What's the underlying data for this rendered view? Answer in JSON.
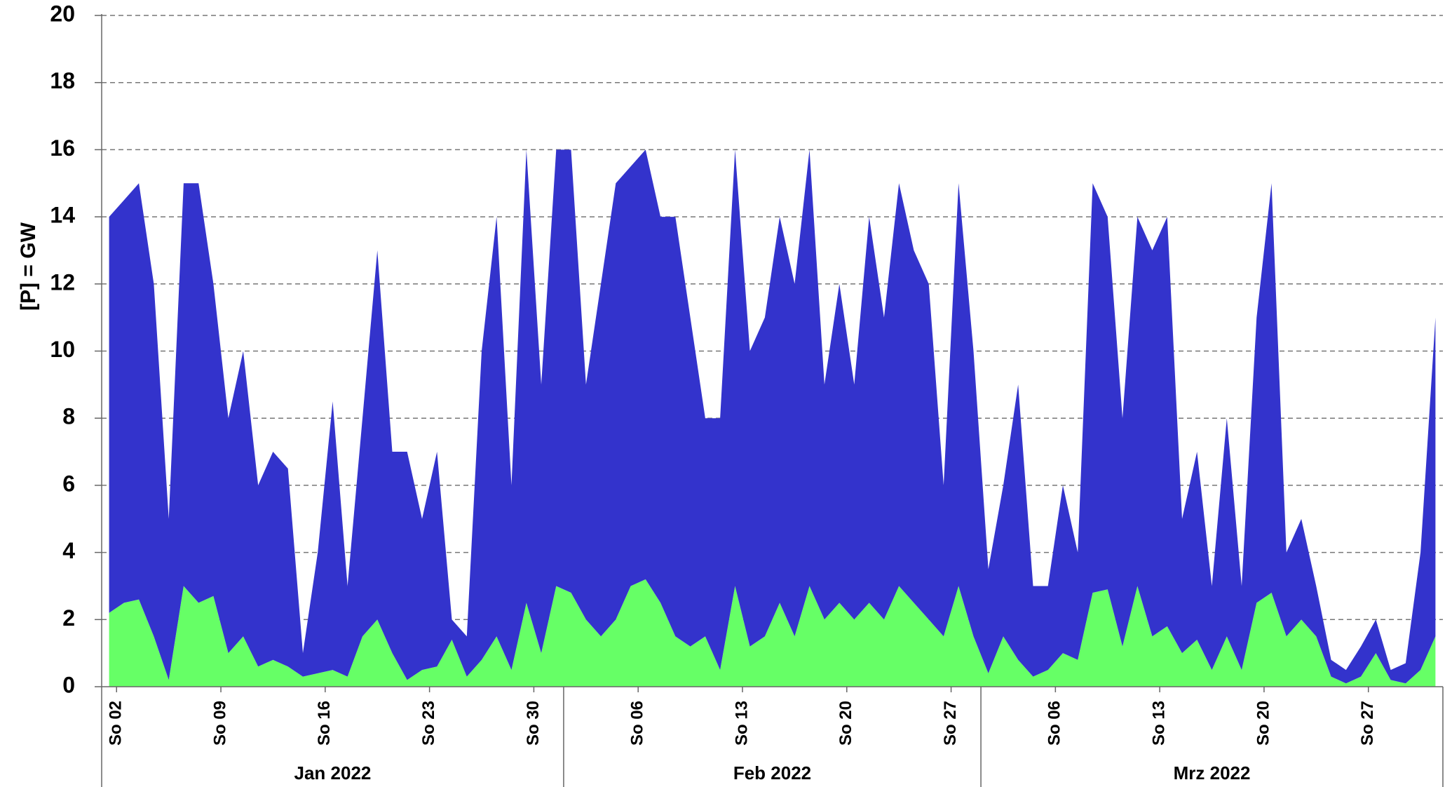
{
  "chart_data": {
    "type": "stacked_area",
    "y_label": "[P] = GW",
    "ylim": [
      0,
      20
    ],
    "yticks": [
      0,
      2,
      4,
      6,
      8,
      10,
      12,
      14,
      16,
      18,
      20
    ],
    "grid": true,
    "xlim": [
      "2022-01-01",
      "2022-03-31"
    ],
    "x": [
      "2022-01-01",
      "2022-01-02",
      "2022-01-03",
      "2022-01-04",
      "2022-01-05",
      "2022-01-06",
      "2022-01-07",
      "2022-01-08",
      "2022-01-09",
      "2022-01-10",
      "2022-01-11",
      "2022-01-12",
      "2022-01-13",
      "2022-01-14",
      "2022-01-15",
      "2022-01-16",
      "2022-01-17",
      "2022-01-18",
      "2022-01-19",
      "2022-01-20",
      "2022-01-21",
      "2022-01-22",
      "2022-01-23",
      "2022-01-24",
      "2022-01-25",
      "2022-01-26",
      "2022-01-27",
      "2022-01-28",
      "2022-01-29",
      "2022-01-30",
      "2022-01-31",
      "2022-02-01",
      "2022-02-02",
      "2022-02-03",
      "2022-02-04",
      "2022-02-05",
      "2022-02-06",
      "2022-02-07",
      "2022-02-08",
      "2022-02-09",
      "2022-02-10",
      "2022-02-11",
      "2022-02-12",
      "2022-02-13",
      "2022-02-14",
      "2022-02-15",
      "2022-02-16",
      "2022-02-17",
      "2022-02-18",
      "2022-02-19",
      "2022-02-20",
      "2022-02-21",
      "2022-02-22",
      "2022-02-23",
      "2022-02-24",
      "2022-02-25",
      "2022-02-26",
      "2022-02-27",
      "2022-02-28",
      "2022-03-01",
      "2022-03-02",
      "2022-03-03",
      "2022-03-04",
      "2022-03-05",
      "2022-03-06",
      "2022-03-07",
      "2022-03-08",
      "2022-03-09",
      "2022-03-10",
      "2022-03-11",
      "2022-03-12",
      "2022-03-13",
      "2022-03-14",
      "2022-03-15",
      "2022-03-16",
      "2022-03-17",
      "2022-03-18",
      "2022-03-19",
      "2022-03-20",
      "2022-03-21",
      "2022-03-22",
      "2022-03-23",
      "2022-03-24",
      "2022-03-25",
      "2022-03-26",
      "2022-03-27",
      "2022-03-28",
      "2022-03-29",
      "2022-03-30",
      "2022-03-31"
    ],
    "series": [
      {
        "color": "#66ff66",
        "values": [
          2.2,
          2.5,
          2.6,
          1.5,
          0.2,
          3.0,
          2.5,
          2.7,
          1.0,
          1.5,
          0.6,
          0.8,
          0.6,
          0.3,
          0.4,
          0.5,
          0.3,
          1.5,
          2.0,
          1.0,
          0.2,
          0.5,
          0.6,
          1.4,
          0.3,
          0.8,
          1.5,
          0.5,
          2.5,
          1.0,
          3.0,
          2.8,
          2.0,
          1.5,
          2.0,
          3.0,
          3.2,
          2.5,
          1.5,
          1.2,
          1.5,
          0.5,
          3.0,
          1.2,
          1.5,
          2.5,
          1.5,
          3.0,
          2.0,
          2.5,
          2.0,
          2.5,
          2.0,
          3.0,
          2.5,
          2.0,
          1.5,
          3.0,
          1.5,
          0.4,
          1.5,
          0.8,
          0.3,
          0.5,
          1.0,
          0.8,
          2.8,
          2.9,
          1.2,
          3.0,
          1.5,
          1.8,
          1.0,
          1.4,
          0.5,
          1.5,
          0.5,
          2.5,
          2.8,
          1.5,
          2.0,
          1.5,
          0.3,
          0.1,
          0.3,
          1.0,
          0.2,
          0.1,
          0.5,
          1.5
        ]
      },
      {
        "color": "#3333cc",
        "values": [
          11.8,
          12,
          12.4,
          10.5,
          4.8,
          12,
          12.5,
          9.3,
          7,
          8.5,
          5.4,
          6.2,
          5.9,
          0.7,
          3.6,
          8,
          2.7,
          6.5,
          11,
          6,
          6.8,
          4.5,
          6.4,
          0.6,
          1.2,
          9.2,
          12.5,
          5.5,
          13.5,
          8,
          13,
          13.2,
          7,
          10.5,
          13,
          12.5,
          12.8,
          11.5,
          12.5,
          9.8,
          6.5,
          7.5,
          13,
          8.8,
          9.5,
          11.5,
          10.5,
          13,
          7,
          9.5,
          7,
          11.5,
          9,
          12,
          10.5,
          10,
          4.5,
          12,
          8.5,
          3.1,
          4.5,
          8.2,
          2.7,
          2.5,
          5,
          3.2,
          12.2,
          11.1,
          6.8,
          11,
          11.5,
          12.2,
          4,
          5.6,
          2.5,
          6.5,
          2.5,
          8.5,
          12.2,
          2.5,
          3,
          1.5,
          0.5,
          0.4,
          0.9,
          1,
          0.3,
          0.6,
          3.5,
          9.5
        ]
      }
    ],
    "xticks": [
      {
        "value": "2022-01-02",
        "label": "So 02"
      },
      {
        "value": "2022-01-09",
        "label": "So 09"
      },
      {
        "value": "2022-01-16",
        "label": "So 16"
      },
      {
        "value": "2022-01-23",
        "label": "So 23"
      },
      {
        "value": "2022-01-30",
        "label": "So 30"
      },
      {
        "value": "2022-02-06",
        "label": "So 06"
      },
      {
        "value": "2022-02-13",
        "label": "So 13"
      },
      {
        "value": "2022-02-20",
        "label": "So 20"
      },
      {
        "value": "2022-02-27",
        "label": "So 27"
      },
      {
        "value": "2022-03-06",
        "label": "So 06"
      },
      {
        "value": "2022-03-13",
        "label": "So 13"
      },
      {
        "value": "2022-03-20",
        "label": "So 20"
      },
      {
        "value": "2022-03-27",
        "label": "So 27"
      }
    ],
    "x_groups": [
      {
        "label": "Jan 2022",
        "first": "2022-01-01",
        "last": "2022-01-31"
      },
      {
        "label": "Feb 2022",
        "first": "2022-02-01",
        "last": "2022-02-28"
      },
      {
        "label": "Mrz 2022",
        "first": "2022-03-01",
        "last": "2022-03-31"
      }
    ]
  }
}
